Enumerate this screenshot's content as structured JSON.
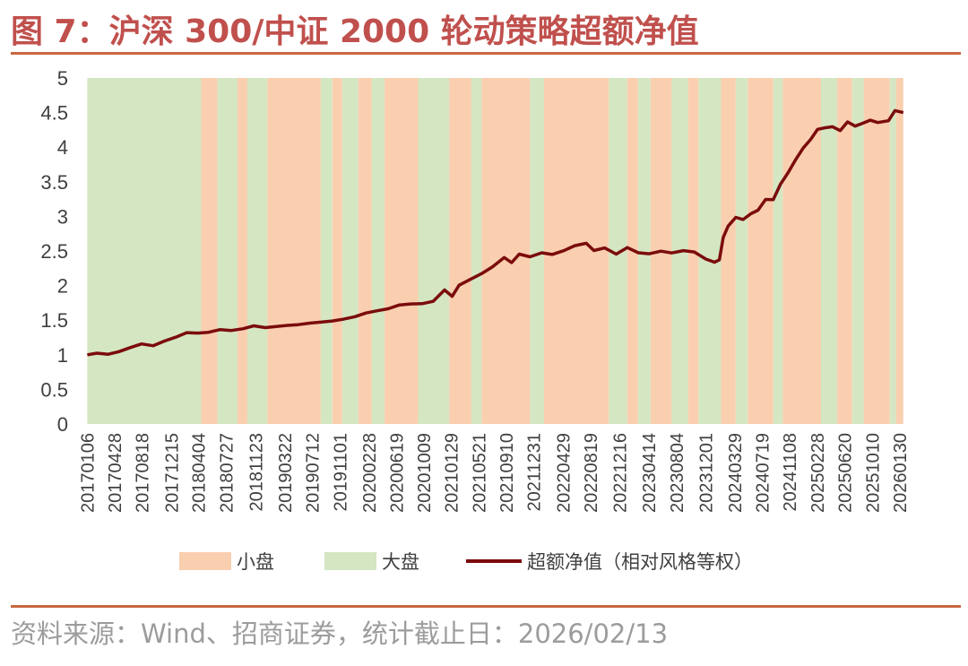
{
  "header": {
    "title": "图 7：沪深 300/中证 2000 轮动策略超额净值"
  },
  "footer": {
    "source": "资料来源：Wind、招商证券，统计截止日：2026/02/13"
  },
  "chart_data": {
    "type": "line",
    "title": "图 7：沪深 300/中证 2000 轮动策略超额净值",
    "xlabel": "",
    "ylabel": "",
    "ylim": [
      0,
      5
    ],
    "y_ticks": [
      "0",
      "0.5",
      "1",
      "1.5",
      "2",
      "2.5",
      "3",
      "3.5",
      "4",
      "4.5",
      "5"
    ],
    "x_ticks": [
      "20170106",
      "20170428",
      "20170818",
      "20171215",
      "20180404",
      "20180727",
      "20181123",
      "20190322",
      "20190712",
      "20191101",
      "20200228",
      "20200619",
      "20201009",
      "20210129",
      "20210521",
      "20210910",
      "20211231",
      "20220429",
      "20220819",
      "20221216",
      "20230414",
      "20230804",
      "20231201",
      "20240329",
      "20240719",
      "20241108",
      "20250228",
      "20250620",
      "20251010",
      "20260130"
    ],
    "x_range_years": [
      2017.0,
      2026.12
    ],
    "legend": {
      "placement": "bottom",
      "entries": [
        {
          "label": "小盘",
          "kind": "area",
          "color": "#f9cfb0"
        },
        {
          "label": "大盘",
          "kind": "area",
          "color": "#d5e6c2"
        },
        {
          "label": "超额净值（相对风格等权）",
          "kind": "line",
          "color": "#7b0c0c"
        }
      ]
    },
    "regimes": [
      {
        "start": "2017-01-06",
        "end": "2018-04-15",
        "style": "大盘"
      },
      {
        "start": "2018-04-15",
        "end": "2018-06-20",
        "style": "小盘"
      },
      {
        "start": "2018-06-20",
        "end": "2018-09-10",
        "style": "大盘"
      },
      {
        "start": "2018-09-10",
        "end": "2018-10-20",
        "style": "小盘"
      },
      {
        "start": "2018-10-20",
        "end": "2019-01-10",
        "style": "大盘"
      },
      {
        "start": "2019-01-10",
        "end": "2019-08-15",
        "style": "小盘"
      },
      {
        "start": "2019-08-15",
        "end": "2019-10-01",
        "style": "大盘"
      },
      {
        "start": "2019-10-01",
        "end": "2019-11-10",
        "style": "小盘"
      },
      {
        "start": "2019-11-10",
        "end": "2020-01-15",
        "style": "大盘"
      },
      {
        "start": "2020-01-15",
        "end": "2020-03-10",
        "style": "小盘"
      },
      {
        "start": "2020-03-10",
        "end": "2020-05-01",
        "style": "大盘"
      },
      {
        "start": "2020-05-01",
        "end": "2020-09-15",
        "style": "小盘"
      },
      {
        "start": "2020-09-15",
        "end": "2021-01-20",
        "style": "大盘"
      },
      {
        "start": "2021-01-20",
        "end": "2021-04-20",
        "style": "小盘"
      },
      {
        "start": "2021-04-20",
        "end": "2021-06-01",
        "style": "大盘"
      },
      {
        "start": "2021-06-01",
        "end": "2021-12-15",
        "style": "小盘"
      },
      {
        "start": "2021-12-15",
        "end": "2022-02-10",
        "style": "大盘"
      },
      {
        "start": "2022-02-10",
        "end": "2022-11-01",
        "style": "小盘"
      },
      {
        "start": "2022-11-01",
        "end": "2023-01-15",
        "style": "大盘"
      },
      {
        "start": "2023-01-15",
        "end": "2023-02-28",
        "style": "小盘"
      },
      {
        "start": "2023-02-28",
        "end": "2023-04-20",
        "style": "大盘"
      },
      {
        "start": "2023-04-20",
        "end": "2023-07-15",
        "style": "小盘"
      },
      {
        "start": "2023-07-15",
        "end": "2023-09-20",
        "style": "大盘"
      },
      {
        "start": "2023-09-20",
        "end": "2023-11-01",
        "style": "小盘"
      },
      {
        "start": "2023-11-01",
        "end": "2024-02-01",
        "style": "大盘"
      },
      {
        "start": "2024-02-01",
        "end": "2024-04-01",
        "style": "小盘"
      },
      {
        "start": "2024-04-01",
        "end": "2024-05-20",
        "style": "大盘"
      },
      {
        "start": "2024-05-20",
        "end": "2024-09-01",
        "style": "小盘"
      },
      {
        "start": "2024-09-01",
        "end": "2024-10-10",
        "style": "大盘"
      },
      {
        "start": "2024-10-10",
        "end": "2025-03-15",
        "style": "小盘"
      },
      {
        "start": "2025-03-15",
        "end": "2025-05-20",
        "style": "大盘"
      },
      {
        "start": "2025-05-20",
        "end": "2025-07-20",
        "style": "小盘"
      },
      {
        "start": "2025-07-20",
        "end": "2025-09-05",
        "style": "大盘"
      },
      {
        "start": "2025-09-05",
        "end": "2025-12-20",
        "style": "小盘"
      },
      {
        "start": "2025-12-20",
        "end": "2026-01-15",
        "style": "大盘"
      },
      {
        "start": "2026-01-15",
        "end": "2026-02-13",
        "style": "小盘"
      }
    ],
    "series": [
      {
        "name": "超额净值（相对风格等权）",
        "points": [
          [
            "2017-01-06",
            1.0
          ],
          [
            "2017-02-15",
            1.03
          ],
          [
            "2017-04-01",
            1.02
          ],
          [
            "2017-05-15",
            1.06
          ],
          [
            "2017-07-01",
            1.12
          ],
          [
            "2017-08-15",
            1.17
          ],
          [
            "2017-10-01",
            1.14
          ],
          [
            "2017-11-15",
            1.2
          ],
          [
            "2018-01-01",
            1.25
          ],
          [
            "2018-02-15",
            1.31
          ],
          [
            "2018-04-01",
            1.3
          ],
          [
            "2018-05-15",
            1.31
          ],
          [
            "2018-07-01",
            1.35
          ],
          [
            "2018-08-15",
            1.34
          ],
          [
            "2018-10-01",
            1.37
          ],
          [
            "2018-11-15",
            1.42
          ],
          [
            "2019-01-01",
            1.4
          ],
          [
            "2019-02-15",
            1.42
          ],
          [
            "2019-04-01",
            1.44
          ],
          [
            "2019-05-15",
            1.45
          ],
          [
            "2019-07-01",
            1.47
          ],
          [
            "2019-08-15",
            1.48
          ],
          [
            "2019-10-01",
            1.49
          ],
          [
            "2019-11-15",
            1.51
          ],
          [
            "2020-01-01",
            1.54
          ],
          [
            "2020-02-15",
            1.59
          ],
          [
            "2020-04-01",
            1.62
          ],
          [
            "2020-05-15",
            1.65
          ],
          [
            "2020-07-01",
            1.71
          ],
          [
            "2020-08-15",
            1.73
          ],
          [
            "2020-10-01",
            1.74
          ],
          [
            "2020-11-15",
            1.78
          ],
          [
            "2021-01-01",
            1.95
          ],
          [
            "2021-02-01",
            1.86
          ],
          [
            "2021-03-01",
            2.02
          ],
          [
            "2021-04-15",
            2.1
          ],
          [
            "2021-06-01",
            2.18
          ],
          [
            "2021-07-15",
            2.27
          ],
          [
            "2021-09-01",
            2.4
          ],
          [
            "2021-10-01",
            2.32
          ],
          [
            "2021-11-01",
            2.44
          ],
          [
            "2021-12-15",
            2.4
          ],
          [
            "2022-02-01",
            2.46
          ],
          [
            "2022-03-15",
            2.44
          ],
          [
            "2022-05-01",
            2.5
          ],
          [
            "2022-06-15",
            2.58
          ],
          [
            "2022-08-01",
            2.62
          ],
          [
            "2022-09-01",
            2.52
          ],
          [
            "2022-10-15",
            2.56
          ],
          [
            "2022-12-01",
            2.47
          ],
          [
            "2023-01-15",
            2.56
          ],
          [
            "2023-03-01",
            2.48
          ],
          [
            "2023-04-15",
            2.46
          ],
          [
            "2023-06-01",
            2.49
          ],
          [
            "2023-07-15",
            2.46
          ],
          [
            "2023-09-01",
            2.49
          ],
          [
            "2023-10-15",
            2.47
          ],
          [
            "2023-12-01",
            2.37
          ],
          [
            "2024-01-05",
            2.33
          ],
          [
            "2024-01-25",
            2.37
          ],
          [
            "2024-02-10",
            2.7
          ],
          [
            "2024-03-01",
            2.87
          ],
          [
            "2024-04-01",
            3.0
          ],
          [
            "2024-05-01",
            2.97
          ],
          [
            "2024-06-01",
            3.05
          ],
          [
            "2024-07-01",
            3.1
          ],
          [
            "2024-08-01",
            3.25
          ],
          [
            "2024-09-01",
            3.24
          ],
          [
            "2024-10-01",
            3.46
          ],
          [
            "2024-11-01",
            3.62
          ],
          [
            "2024-12-01",
            3.8
          ],
          [
            "2025-01-01",
            3.97
          ],
          [
            "2025-02-01",
            4.1
          ],
          [
            "2025-03-01",
            4.25
          ],
          [
            "2025-04-01",
            4.28
          ],
          [
            "2025-05-01",
            4.3
          ],
          [
            "2025-06-01",
            4.25
          ],
          [
            "2025-07-01",
            4.38
          ],
          [
            "2025-08-01",
            4.32
          ],
          [
            "2025-09-01",
            4.36
          ],
          [
            "2025-10-01",
            4.4
          ],
          [
            "2025-11-01",
            4.36
          ],
          [
            "2025-12-15",
            4.38
          ],
          [
            "2026-01-10",
            4.52
          ],
          [
            "2026-02-13",
            4.5
          ]
        ]
      }
    ]
  }
}
